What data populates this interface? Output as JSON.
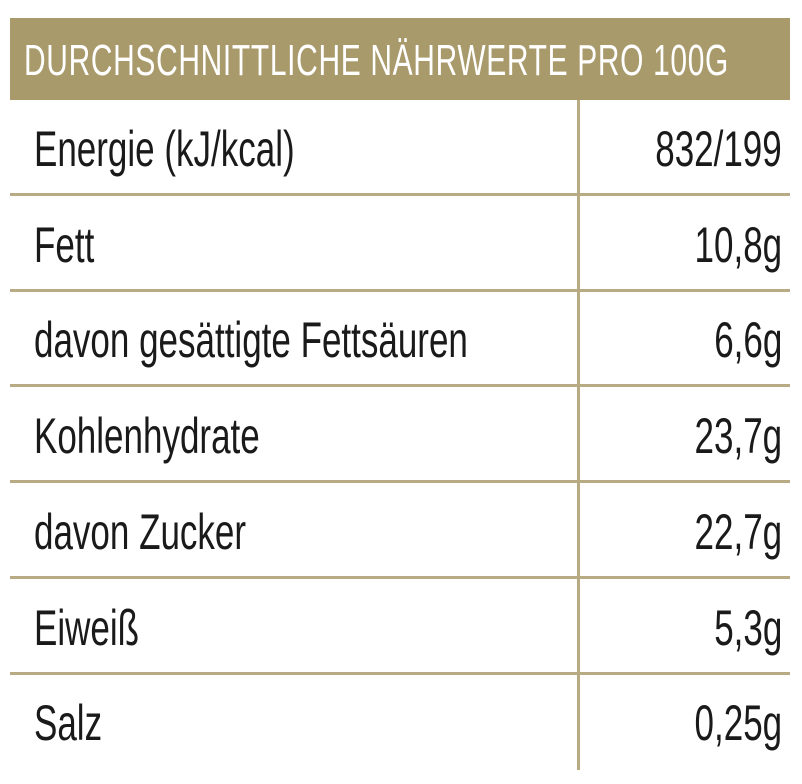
{
  "header": {
    "title": "DURCHSCHNITTLICHE NÄHRWERTE PRO 100G"
  },
  "table": {
    "rows": [
      [
        "Energie (kJ/kcal)",
        "832/199"
      ],
      [
        "Fett",
        "10,8g"
      ],
      [
        "davon gesättigte Fettsäuren",
        "6,6g"
      ],
      [
        "Kohlenhydrate",
        "23,7g"
      ],
      [
        "davon Zucker",
        "22,7g"
      ],
      [
        "Eiweiß",
        "5,3g"
      ],
      [
        "Salz",
        "0,25g"
      ]
    ]
  }
}
